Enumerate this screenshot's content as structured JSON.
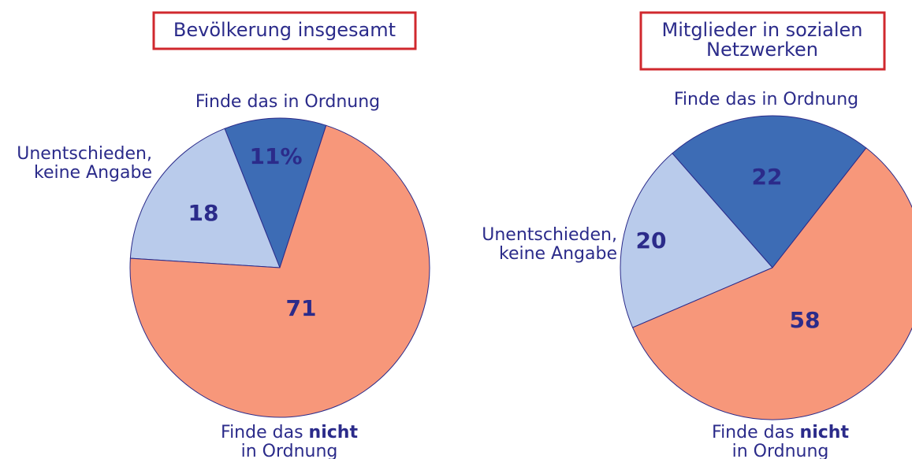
{
  "chart_data": [
    {
      "type": "pie",
      "title": [
        "Bevölkerung insgesamt"
      ],
      "categories": [
        [
          [
            "Finde das in Ordnung"
          ]
        ],
        [
          [
            "Unentschieden,"
          ],
          [
            "keine Angabe"
          ]
        ],
        [
          [
            "Finde das ",
            "nicht"
          ],
          [
            "in Ordnung"
          ]
        ]
      ],
      "values": [
        11,
        18,
        71
      ],
      "value_labels": [
        "11%",
        "18",
        "71"
      ],
      "colors": [
        "#3d6cb5",
        "#b9cbeb",
        "#f7977a"
      ]
    },
    {
      "type": "pie",
      "title": [
        "Mitglieder in sozialen",
        "Netzwerken"
      ],
      "categories": [
        [
          [
            "Finde das in Ordnung"
          ]
        ],
        [
          [
            "Unentschieden,"
          ],
          [
            "keine Angabe"
          ]
        ],
        [
          [
            "Finde das ",
            "nicht"
          ],
          [
            "in Ordnung"
          ]
        ]
      ],
      "values": [
        22,
        20,
        58
      ],
      "value_labels": [
        "22",
        "20",
        "58"
      ],
      "colors": [
        "#3d6cb5",
        "#b9cbeb",
        "#f7977a"
      ]
    }
  ]
}
